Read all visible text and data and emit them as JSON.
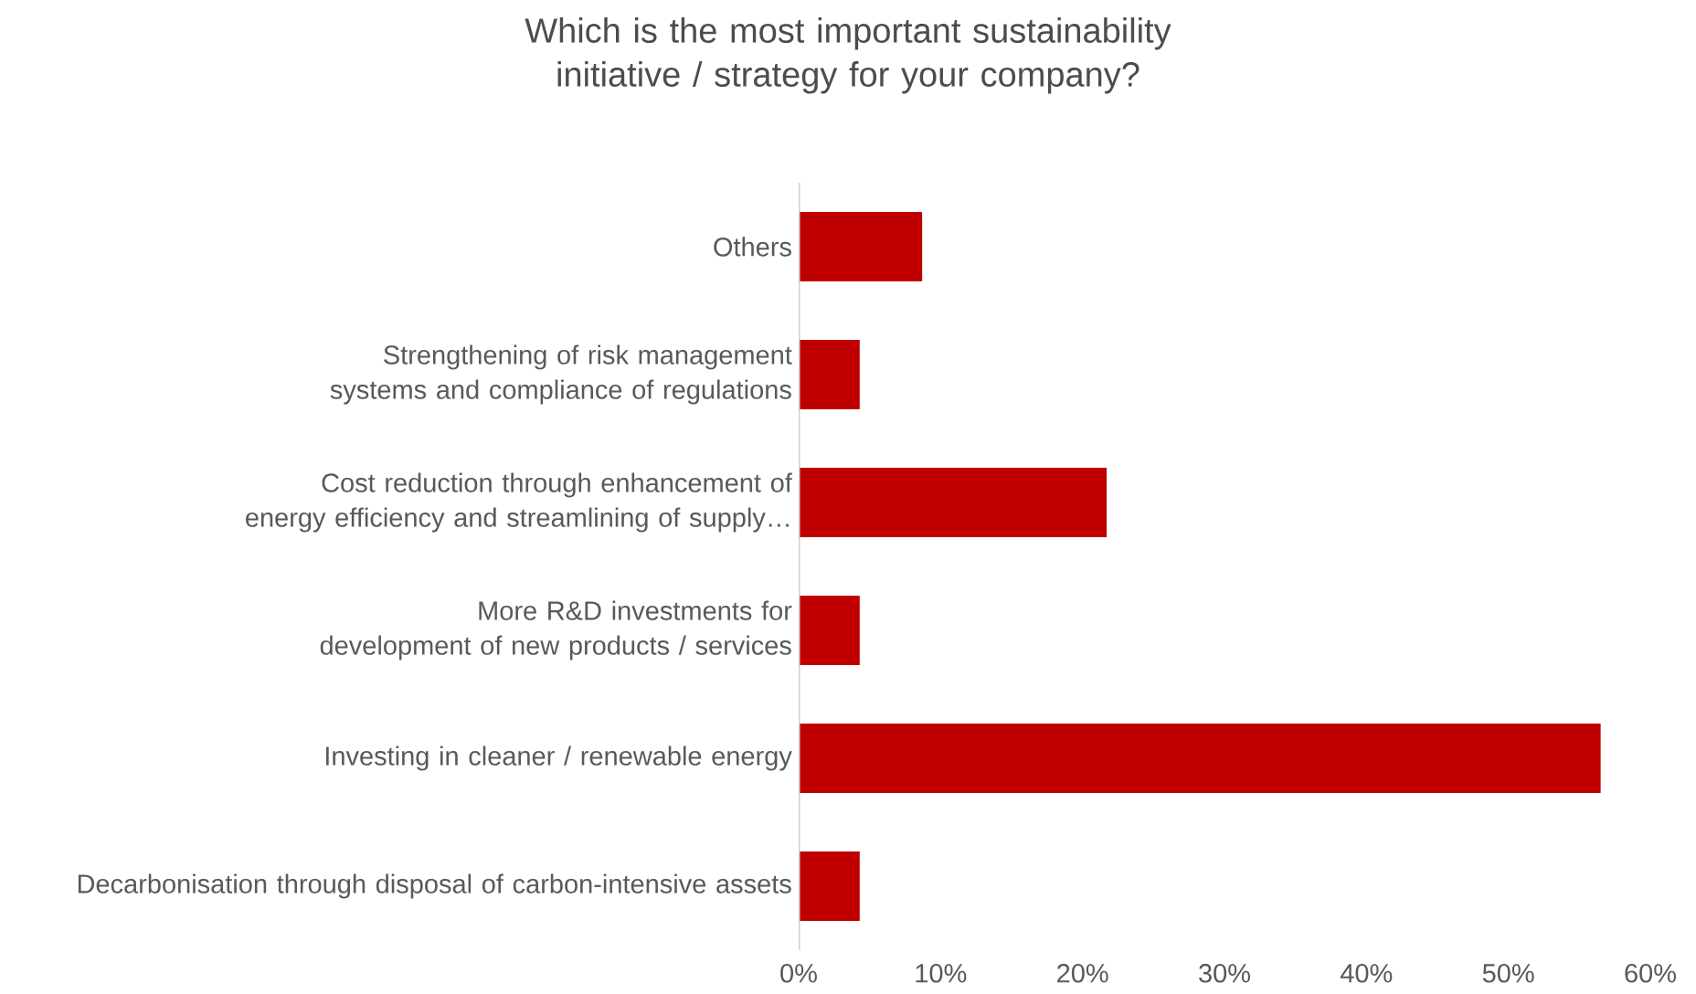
{
  "chart_data": {
    "type": "bar",
    "orientation": "horizontal",
    "title": "Which is the most important sustainability initiative / strategy for your company?",
    "categories": [
      "Others",
      "Strengthening of risk management systems and compliance of regulations",
      "Cost reduction through enhancement of energy efficiency and streamlining of supply…",
      "More R&D investments for development of new products / services",
      "Investing in cleaner / renewable energy",
      "Decarbonisation through disposal of carbon-intensive assets"
    ],
    "values": [
      8.7,
      4.3,
      21.7,
      4.3,
      56.5,
      4.3
    ],
    "color": "#c00000",
    "xlim": [
      0,
      60
    ],
    "xticks": [
      {
        "value": 0,
        "label": "0%"
      },
      {
        "value": 10,
        "label": "10%"
      },
      {
        "value": 20,
        "label": "20%"
      },
      {
        "value": 30,
        "label": "30%"
      },
      {
        "value": 40,
        "label": "40%"
      },
      {
        "value": 50,
        "label": "50%"
      },
      {
        "value": 60,
        "label": "60%"
      }
    ],
    "grid": false
  }
}
